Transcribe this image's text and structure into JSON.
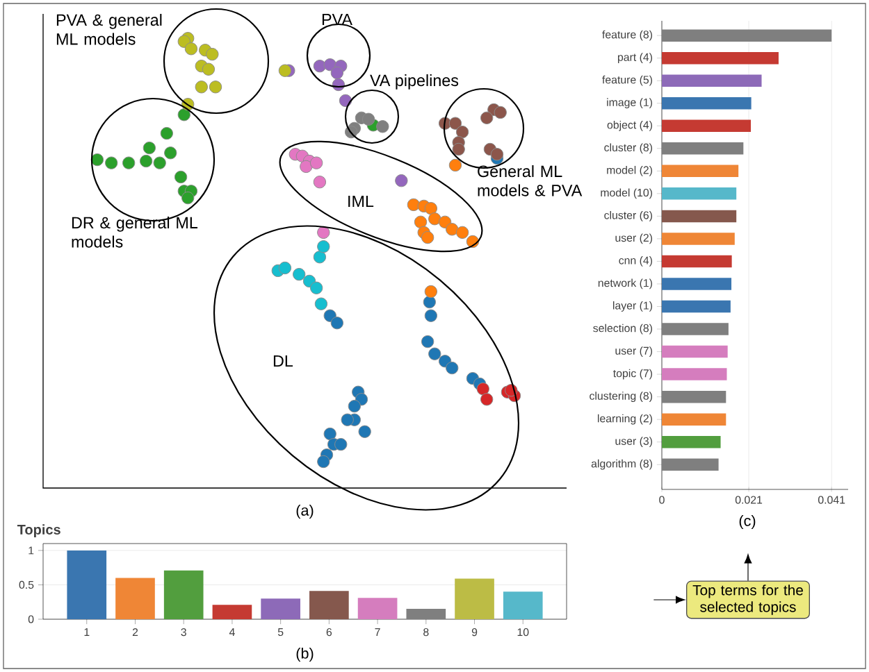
{
  "chart_data": [
    {
      "type": "other",
      "annotations": [
        "PVA & general ML models",
        "PVA",
        "VA pipelines",
        "General ML models & PVA",
        "IML",
        "DR & general ML models",
        "DL",
        "(a)"
      ]
    },
    {
      "type": "bar",
      "title": "Topics",
      "categories": [
        "1",
        "2",
        "3",
        "4",
        "5",
        "6",
        "7",
        "8",
        "9",
        "10"
      ],
      "values": [
        1.0,
        0.6,
        0.71,
        0.21,
        0.3,
        0.41,
        0.31,
        0.15,
        0.59,
        0.4
      ],
      "colors": [
        "#3a76b0",
        "#ef8636",
        "#529e3e",
        "#c53a32",
        "#8d6ab8",
        "#85584d",
        "#d57dbe",
        "#7f7f7f",
        "#bcbc45",
        "#56b8ca"
      ],
      "ylim": [
        0,
        1.1
      ],
      "yticks": [
        0,
        0.5,
        1
      ],
      "grid": "y",
      "annotations": [
        "(b)"
      ]
    },
    {
      "type": "bar",
      "orientation": "horizontal",
      "categories": [
        "feature (8)",
        "part (4)",
        "feature (5)",
        "image (1)",
        "object (4)",
        "cluster (8)",
        "model (2)",
        "model (10)",
        "cluster (6)",
        "user (2)",
        "cnn (4)",
        "network (1)",
        "layer (1)",
        "selection (8)",
        "user (7)",
        "topic (7)",
        "clustering (8)",
        "learning (2)",
        "user (3)",
        "algorithm (8)"
      ],
      "values": [
        0.041,
        0.0282,
        0.0241,
        0.0216,
        0.0215,
        0.0197,
        0.0185,
        0.018,
        0.018,
        0.0176,
        0.0169,
        0.0168,
        0.0166,
        0.0161,
        0.0159,
        0.0157,
        0.0155,
        0.0155,
        0.0142,
        0.0137
      ],
      "colors": [
        "#7f7f7f",
        "#c53a32",
        "#8d6ab8",
        "#3a76b0",
        "#c53a32",
        "#7f7f7f",
        "#ef8636",
        "#56b8ca",
        "#85584d",
        "#ef8636",
        "#c53a32",
        "#3a76b0",
        "#3a76b0",
        "#7f7f7f",
        "#d57dbe",
        "#d57dbe",
        "#7f7f7f",
        "#ef8636",
        "#529e3e",
        "#7f7f7f"
      ],
      "xlim": [
        0,
        0.045
      ],
      "xticks": [
        0,
        0.021,
        0.041
      ],
      "grid": "x",
      "annotations": [
        "(c)",
        "Top terms for the selected topics"
      ]
    }
  ]
}
